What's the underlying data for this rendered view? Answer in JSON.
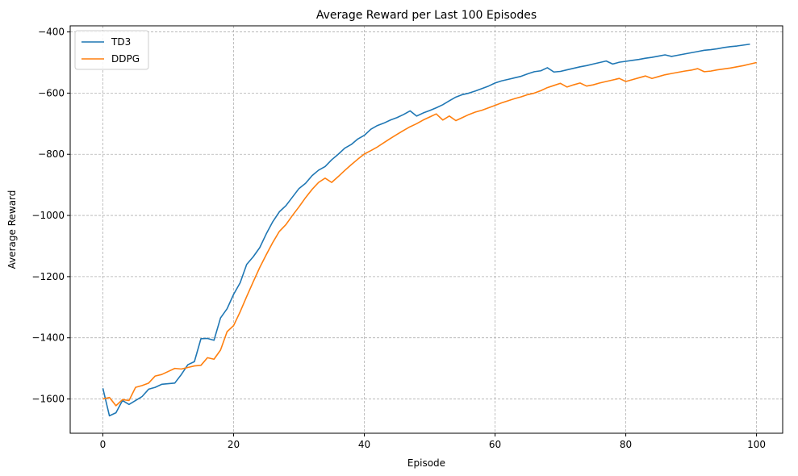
{
  "chart_data": {
    "type": "line",
    "title": "Average Reward per Last 100 Episodes",
    "xlabel": "Episode",
    "ylabel": "Average Reward",
    "xlim": [
      -5,
      104
    ],
    "ylim": [
      -1712,
      -380
    ],
    "xticks": [
      0,
      20,
      40,
      60,
      80,
      100
    ],
    "yticks": [
      -1600,
      -1400,
      -1200,
      -1000,
      -800,
      -600,
      -400
    ],
    "grid": true,
    "legend_position": "top-left",
    "series": [
      {
        "name": "TD3",
        "color": "#1f77b4",
        "values": [
          -1565,
          -1655,
          -1645,
          -1605,
          -1618,
          -1605,
          -1592,
          -1568,
          -1562,
          -1552,
          -1550,
          -1548,
          -1520,
          -1488,
          -1478,
          -1403,
          -1402,
          -1408,
          -1335,
          -1305,
          -1258,
          -1220,
          -1160,
          -1135,
          -1105,
          -1060,
          -1020,
          -988,
          -968,
          -940,
          -912,
          -895,
          -870,
          -852,
          -840,
          -818,
          -800,
          -780,
          -768,
          -750,
          -738,
          -718,
          -706,
          -698,
          -688,
          -680,
          -670,
          -658,
          -675,
          -665,
          -657,
          -648,
          -638,
          -625,
          -613,
          -605,
          -600,
          -593,
          -585,
          -577,
          -567,
          -560,
          -555,
          -550,
          -545,
          -537,
          -530,
          -527,
          -517,
          -531,
          -529,
          -524,
          -519,
          -514,
          -510,
          -505,
          -500,
          -495,
          -505,
          -499,
          -496,
          -493,
          -490,
          -486,
          -483,
          -479,
          -475,
          -480,
          -476,
          -472,
          -468,
          -464,
          -460,
          -458,
          -455,
          -451,
          -448,
          -446,
          -443,
          -440
        ]
      },
      {
        "name": "DDPG",
        "color": "#ff7f0e",
        "values": [
          -1600,
          -1595,
          -1622,
          -1602,
          -1605,
          -1562,
          -1556,
          -1548,
          -1525,
          -1520,
          -1510,
          -1500,
          -1502,
          -1497,
          -1492,
          -1490,
          -1465,
          -1470,
          -1440,
          -1380,
          -1360,
          -1315,
          -1265,
          -1217,
          -1170,
          -1128,
          -1088,
          -1052,
          -1030,
          -1000,
          -972,
          -942,
          -915,
          -892,
          -878,
          -892,
          -873,
          -853,
          -834,
          -816,
          -799,
          -788,
          -776,
          -762,
          -748,
          -735,
          -722,
          -710,
          -700,
          -688,
          -678,
          -668,
          -688,
          -675,
          -690,
          -680,
          -670,
          -662,
          -656,
          -648,
          -640,
          -632,
          -625,
          -618,
          -612,
          -605,
          -600,
          -592,
          -582,
          -575,
          -568,
          -580,
          -573,
          -567,
          -577,
          -573,
          -567,
          -562,
          -557,
          -552,
          -562,
          -556,
          -550,
          -544,
          -552,
          -546,
          -540,
          -536,
          -532,
          -528,
          -525,
          -520,
          -530,
          -528,
          -524,
          -521,
          -518,
          -514,
          -510,
          -505,
          -500
        ]
      }
    ]
  }
}
